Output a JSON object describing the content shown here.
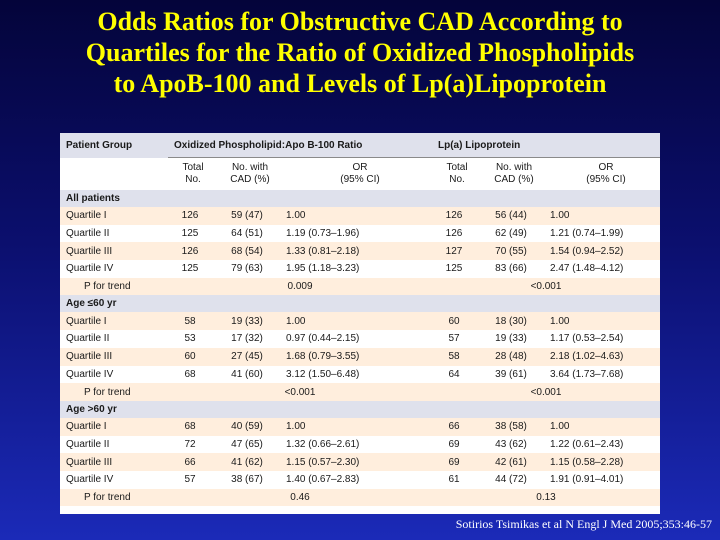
{
  "title": {
    "line1": "Odds Ratios for Obstructive CAD According to",
    "line2": "Quartiles for the Ratio of Oxidized Phospholipids",
    "line3": "to ApoB-100 and Levels of Lp(a)Lipoprotein"
  },
  "table": {
    "header": {
      "patient_group": "Patient Group",
      "group1": "Oxidized Phospholipid:Apo B-100 Ratio",
      "group2": "Lp(a) Lipoprotein",
      "total_l1": "Total",
      "total_l2": "No.",
      "cad_l1": "No. with",
      "cad_l2": "CAD (%)",
      "or_l1": "OR",
      "or_l2": "(95% CI)"
    },
    "sections": [
      {
        "label": "All patients",
        "rows": [
          {
            "label": "Quartile I",
            "t1": "126",
            "c1": "59 (47)",
            "o1": "1.00",
            "t2": "126",
            "c2": "56 (44)",
            "o2": "1.00"
          },
          {
            "label": "Quartile II",
            "t1": "125",
            "c1": "64 (51)",
            "o1": "1.19 (0.73–1.96)",
            "t2": "126",
            "c2": "62 (49)",
            "o2": "1.21 (0.74–1.99)"
          },
          {
            "label": "Quartile III",
            "t1": "126",
            "c1": "68 (54)",
            "o1": "1.33 (0.81–2.18)",
            "t2": "127",
            "c2": "70 (55)",
            "o2": "1.54 (0.94–2.52)"
          },
          {
            "label": "Quartile IV",
            "t1": "125",
            "c1": "79 (63)",
            "o1": "1.95 (1.18–3.23)",
            "t2": "125",
            "c2": "83 (66)",
            "o2": "2.47 (1.48–4.12)"
          }
        ],
        "trend": {
          "label": "P for trend",
          "v1": "0.009",
          "v2": "<0.001"
        }
      },
      {
        "label": "Age ≤60 yr",
        "rows": [
          {
            "label": "Quartile I",
            "t1": "58",
            "c1": "19 (33)",
            "o1": "1.00",
            "t2": "60",
            "c2": "18 (30)",
            "o2": "1.00"
          },
          {
            "label": "Quartile II",
            "t1": "53",
            "c1": "17 (32)",
            "o1": "0.97 (0.44–2.15)",
            "t2": "57",
            "c2": "19 (33)",
            "o2": "1.17 (0.53–2.54)"
          },
          {
            "label": "Quartile III",
            "t1": "60",
            "c1": "27 (45)",
            "o1": "1.68 (0.79–3.55)",
            "t2": "58",
            "c2": "28 (48)",
            "o2": "2.18 (1.02–4.63)"
          },
          {
            "label": "Quartile IV",
            "t1": "68",
            "c1": "41 (60)",
            "o1": "3.12 (1.50–6.48)",
            "t2": "64",
            "c2": "39 (61)",
            "o2": "3.64 (1.73–7.68)"
          }
        ],
        "trend": {
          "label": "P for trend",
          "v1": "<0.001",
          "v2": "<0.001"
        }
      },
      {
        "label": "Age >60 yr",
        "rows": [
          {
            "label": "Quartile I",
            "t1": "68",
            "c1": "40 (59)",
            "o1": "1.00",
            "t2": "66",
            "c2": "38 (58)",
            "o2": "1.00"
          },
          {
            "label": "Quartile II",
            "t1": "72",
            "c1": "47 (65)",
            "o1": "1.32 (0.66–2.61)",
            "t2": "69",
            "c2": "43 (62)",
            "o2": "1.22 (0.61–2.43)"
          },
          {
            "label": "Quartile III",
            "t1": "66",
            "c1": "41 (62)",
            "o1": "1.15 (0.57–2.30)",
            "t2": "69",
            "c2": "42 (61)",
            "o2": "1.15 (0.58–2.28)"
          },
          {
            "label": "Quartile IV",
            "t1": "57",
            "c1": "38 (67)",
            "o1": "1.40 (0.67–2.83)",
            "t2": "61",
            "c2": "44 (72)",
            "o2": "1.91 (0.91–4.01)"
          }
        ],
        "trend": {
          "label": "P for trend",
          "v1": "0.46",
          "v2": "0.13"
        }
      }
    ]
  },
  "citation": "Sotirios Tsimikas et al N Engl J Med 2005;353:46-57",
  "colors": {
    "title": "#ffff00",
    "header_bg": "#dfe1ec",
    "row_alt": "#ffeedd",
    "background_top": "#04043a",
    "background_bottom": "#1b2ab8"
  }
}
